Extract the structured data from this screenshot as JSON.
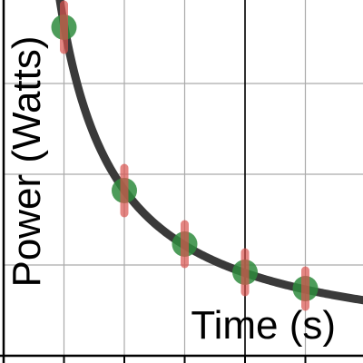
{
  "chart_data": {
    "type": "scatter",
    "title": "",
    "xlabel": "Time (s)",
    "ylabel": "Power (Watts)",
    "xlim": [
      0,
      6
    ],
    "ylim": [
      0,
      4
    ],
    "x_gridlines": [
      1,
      2,
      3,
      4,
      5
    ],
    "y_gridlines": [
      1,
      2,
      3
    ],
    "grid": true,
    "series": [
      {
        "kind": "points",
        "x": [
          1,
          2,
          3,
          4,
          5
        ],
        "y": [
          3.62,
          1.82,
          1.23,
          0.92,
          0.74
        ],
        "yerr": [
          0.25,
          0.25,
          0.22,
          0.22,
          0.2
        ],
        "color": "#2e8b3d",
        "error_color": "#d9534f"
      },
      {
        "kind": "fit-curve",
        "equation": "y = 3.65 / x",
        "color": "#3a3a3a"
      }
    ],
    "colors": {
      "grid": "#aaaaaa",
      "axis": "#000000",
      "curve": "#3a3a3a",
      "point": "#2e8b3d",
      "error": "#d9534f"
    }
  }
}
